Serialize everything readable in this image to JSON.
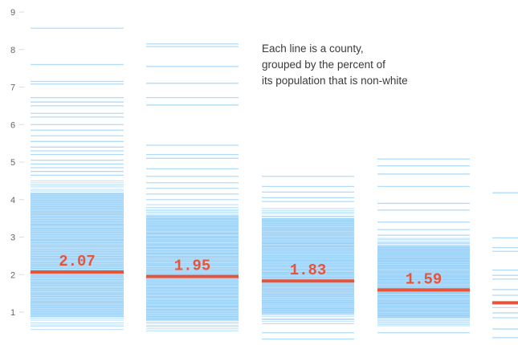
{
  "chart_data": {
    "type": "strip",
    "title": "",
    "xlabel": "",
    "ylabel": "",
    "ylim": [
      0.5,
      9
    ],
    "yticks": [
      1,
      2,
      3,
      4,
      5,
      6,
      7,
      8,
      9
    ],
    "grid": false,
    "colors": {
      "line": "#7dc4f5",
      "median": "#e8543a",
      "tick": "#666666"
    },
    "annotation": [
      "Each line is a county,",
      "grouped by the percent of",
      "its population that is non-white"
    ],
    "groups": [
      {
        "median": 2.07,
        "median_label": "2.07",
        "band": [
          0.55,
          4.5
        ],
        "scattered": [
          8.57,
          7.6,
          7.15,
          7.08,
          6.72,
          6.6,
          6.5,
          6.3,
          6.2,
          6.0,
          5.85,
          5.7,
          5.55,
          5.4,
          5.3,
          5.2,
          5.05,
          4.95,
          4.85,
          4.75,
          4.65
        ]
      },
      {
        "median": 1.95,
        "median_label": "1.95",
        "band": [
          0.5,
          3.85
        ],
        "scattered": [
          8.15,
          8.08,
          7.55,
          7.1,
          6.72,
          6.52,
          5.45,
          5.2,
          5.1,
          4.82,
          4.62,
          4.45,
          4.3,
          4.15,
          4.0
        ]
      },
      {
        "median": 1.83,
        "median_label": "1.83",
        "band": [
          0.7,
          3.75
        ],
        "scattered": [
          4.62,
          4.35,
          4.2,
          4.05,
          3.95,
          0.45,
          0.28
        ]
      },
      {
        "median": 1.59,
        "median_label": "1.59",
        "band": [
          0.65,
          2.95
        ],
        "scattered": [
          5.08,
          4.9,
          4.68,
          4.35,
          3.9,
          3.72,
          3.4,
          3.2,
          3.05,
          0.45
        ]
      },
      {
        "median": 1.25,
        "median_label": "",
        "band": null,
        "scattered": [
          4.18,
          2.98,
          2.72,
          2.62,
          2.12,
          1.98,
          1.88,
          1.6,
          1.45,
          1.12,
          0.98,
          0.85,
          0.55,
          0.32
        ]
      }
    ]
  }
}
